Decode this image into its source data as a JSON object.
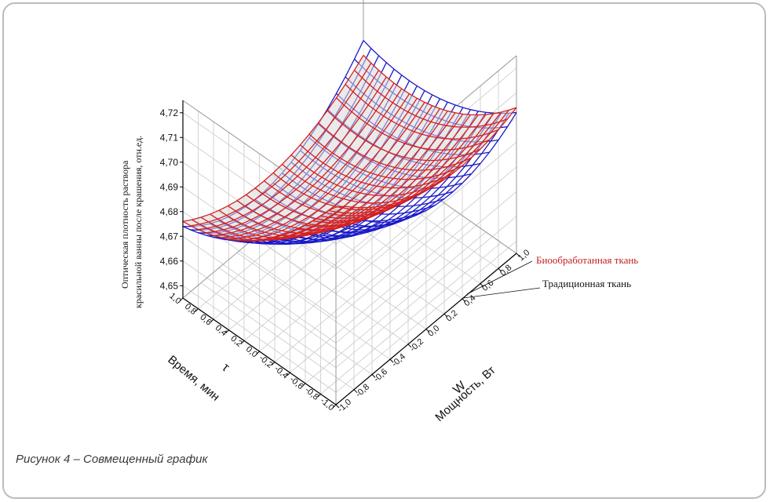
{
  "caption": "Рисунок 4 – Совмещенный график",
  "chart_data": {
    "type": "surface3d",
    "zlabel": "Оптическая плотность раствора красильной ванны после крашения, отн.ед.",
    "zlabel_line1": "Оптическая плотность раствора",
    "zlabel_line2": "красильной ванны после крашения, отн.ед.",
    "time_axis": {
      "var": "τ",
      "label": "Время, мин",
      "ticks": [
        "1,0",
        "0,8",
        "0,6",
        "0,4",
        "0,2",
        "0,0",
        "-0,2",
        "-0,4",
        "-0,6",
        "-0,8",
        "-1,0"
      ]
    },
    "power_axis": {
      "var": "W",
      "label": "Мощность, Вт",
      "ticks": [
        "-1,0",
        "-0,8",
        "-0,6",
        "-0,4",
        "-0,2",
        "0,0",
        "0,2",
        "0,4",
        "0,6",
        "0,8",
        "1,0"
      ]
    },
    "z_ticks": [
      "4,72",
      "4,71",
      "4,70",
      "4,69",
      "4,68",
      "4,67",
      "4,66",
      "4,65"
    ],
    "zlim": [
      4.645,
      4.725
    ],
    "series": [
      {
        "name": "Биообработанная ткань",
        "color": "#d42020",
        "coef": {
          "a": 4.672,
          "b": 0.018,
          "c": 0.004,
          "d": 0.011,
          "e": 0.014,
          "f": 0.007
        }
      },
      {
        "name": "Традиционная ткань",
        "color": "#1a1ac8",
        "coef": {
          "a": 4.668,
          "b": 0.016,
          "c": 0.002,
          "d": 0.009,
          "e": 0.02,
          "f": 0.009
        }
      }
    ],
    "grid": true
  }
}
